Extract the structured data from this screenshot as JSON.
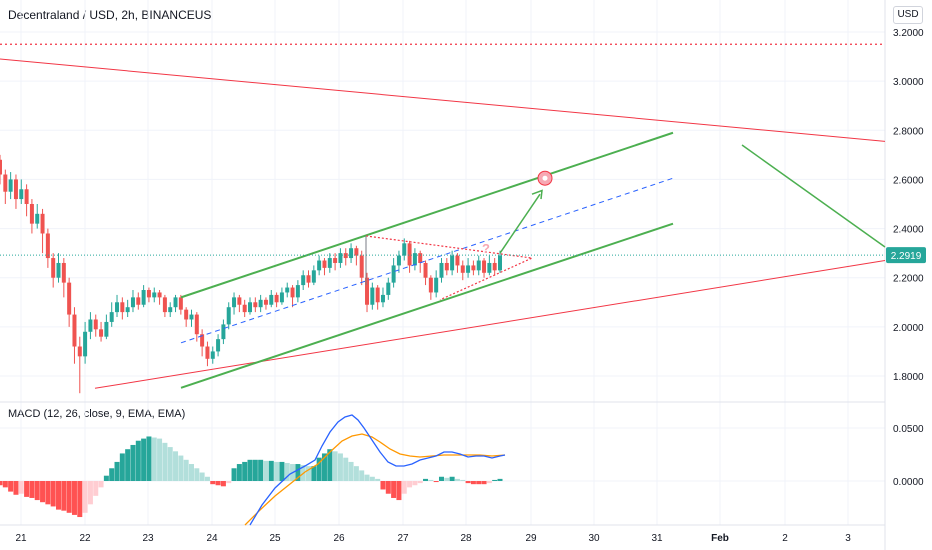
{
  "header": {
    "title": "Decentraland / USD, 2h, BINANCEUS",
    "currency_badge": "USD"
  },
  "macd": {
    "label": "MACD (12, 26, close, 9, EMA, EMA)",
    "y_ticks": [
      "0.0500",
      "0.0000"
    ]
  },
  "price": {
    "current_label": "2.2919",
    "current_value": 2.2919,
    "y_ticks": [
      "3.2000",
      "3.0000",
      "2.8000",
      "2.6000",
      "2.4000",
      "2.2000",
      "2.0000",
      "1.8000"
    ]
  },
  "chart_data": {
    "type": "candlestick",
    "symbol": "Decentraland / USD",
    "interval": "2h",
    "exchange": "BINANCEUS",
    "x_ticks": [
      "21",
      "22",
      "23",
      "24",
      "25",
      "26",
      "27",
      "28",
      "29",
      "30",
      "31",
      "Feb",
      "2",
      "3"
    ],
    "y_range": [
      1.72,
      3.26
    ],
    "last_price": 2.2919,
    "candles_approx": [
      [
        2.68,
        2.62,
        2.7,
        2.58
      ],
      [
        2.62,
        2.55,
        2.64,
        2.5
      ],
      [
        2.55,
        2.6,
        2.63,
        2.52
      ],
      [
        2.6,
        2.52,
        2.62,
        2.48
      ],
      [
        2.52,
        2.56,
        2.6,
        2.5
      ],
      [
        2.56,
        2.5,
        2.58,
        2.45
      ],
      [
        2.5,
        2.42,
        2.52,
        2.38
      ],
      [
        2.42,
        2.46,
        2.5,
        2.4
      ],
      [
        2.46,
        2.38,
        2.48,
        2.3
      ],
      [
        2.38,
        2.28,
        2.4,
        2.24
      ],
      [
        2.28,
        2.2,
        2.3,
        2.16
      ],
      [
        2.2,
        2.26,
        2.3,
        2.18
      ],
      [
        2.26,
        2.18,
        2.28,
        2.12
      ],
      [
        2.18,
        2.05,
        2.2,
        2.0
      ],
      [
        2.05,
        1.92,
        2.08,
        1.85
      ],
      [
        1.92,
        1.88,
        1.96,
        1.73
      ],
      [
        1.88,
        1.98,
        2.02,
        1.85
      ],
      [
        1.98,
        2.03,
        2.06,
        1.95
      ],
      [
        2.03,
        1.99,
        2.05,
        1.96
      ],
      [
        1.99,
        1.96,
        2.02,
        1.94
      ],
      [
        1.96,
        2.02,
        2.05,
        1.95
      ],
      [
        2.02,
        2.06,
        2.1,
        2.0
      ],
      [
        2.06,
        2.1,
        2.13,
        2.04
      ],
      [
        2.1,
        2.06,
        2.12,
        2.03
      ],
      [
        2.06,
        2.08,
        2.11,
        2.04
      ],
      [
        2.08,
        2.12,
        2.15,
        2.06
      ],
      [
        2.12,
        2.09,
        2.14,
        2.07
      ],
      [
        2.09,
        2.15,
        2.17,
        2.08
      ],
      [
        2.15,
        2.12,
        2.16,
        2.1
      ],
      [
        2.12,
        2.14,
        2.16,
        2.1
      ],
      [
        2.14,
        2.12,
        2.15,
        2.09
      ],
      [
        2.12,
        2.06,
        2.13,
        2.04
      ],
      [
        2.06,
        2.08,
        2.1,
        2.04
      ],
      [
        2.08,
        2.12,
        2.13,
        2.06
      ],
      [
        2.12,
        2.07,
        2.13,
        2.05
      ],
      [
        2.07,
        2.03,
        2.08,
        2.0
      ],
      [
        2.03,
        2.05,
        2.07,
        2.0
      ],
      [
        2.05,
        1.97,
        2.06,
        1.94
      ],
      [
        1.97,
        1.92,
        1.99,
        1.88
      ],
      [
        1.92,
        1.87,
        1.94,
        1.84
      ],
      [
        1.87,
        1.9,
        1.92,
        1.85
      ],
      [
        1.9,
        1.95,
        1.97,
        1.88
      ],
      [
        1.95,
        2.01,
        2.03,
        1.93
      ],
      [
        2.01,
        2.08,
        2.1,
        1.99
      ],
      [
        2.08,
        2.12,
        2.14,
        2.05
      ],
      [
        2.12,
        2.09,
        2.13,
        2.06
      ],
      [
        2.09,
        2.06,
        2.11,
        2.04
      ],
      [
        2.06,
        2.1,
        2.12,
        2.05
      ],
      [
        2.1,
        2.08,
        2.12,
        2.06
      ],
      [
        2.08,
        2.11,
        2.13,
        2.06
      ],
      [
        2.11,
        2.09,
        2.12,
        2.07
      ],
      [
        2.09,
        2.13,
        2.15,
        2.08
      ],
      [
        2.13,
        2.1,
        2.14,
        2.08
      ],
      [
        2.1,
        2.14,
        2.16,
        2.09
      ],
      [
        2.14,
        2.16,
        2.18,
        2.12
      ],
      [
        2.16,
        2.12,
        2.17,
        2.08
      ],
      [
        2.12,
        2.17,
        2.19,
        2.1
      ],
      [
        2.17,
        2.21,
        2.23,
        2.15
      ],
      [
        2.21,
        2.18,
        2.23,
        2.16
      ],
      [
        2.18,
        2.23,
        2.25,
        2.17
      ],
      [
        2.23,
        2.27,
        2.29,
        2.21
      ],
      [
        2.27,
        2.24,
        2.28,
        2.21
      ],
      [
        2.24,
        2.28,
        2.3,
        2.22
      ],
      [
        2.28,
        2.26,
        2.3,
        2.23
      ],
      [
        2.26,
        2.3,
        2.32,
        2.24
      ],
      [
        2.3,
        2.28,
        2.32,
        2.25
      ],
      [
        2.28,
        2.32,
        2.34,
        2.26
      ],
      [
        2.32,
        2.29,
        2.33,
        2.25
      ],
      [
        2.29,
        2.2,
        2.31,
        2.17
      ],
      [
        2.2,
        2.09,
        2.22,
        2.06
      ],
      [
        2.09,
        2.16,
        2.18,
        2.07
      ],
      [
        2.16,
        2.1,
        2.17,
        2.07
      ],
      [
        2.1,
        2.13,
        2.16,
        2.08
      ],
      [
        2.13,
        2.18,
        2.2,
        2.11
      ],
      [
        2.18,
        2.25,
        2.28,
        2.16
      ],
      [
        2.25,
        2.29,
        2.31,
        2.22
      ],
      [
        2.29,
        2.34,
        2.36,
        2.27
      ],
      [
        2.34,
        2.25,
        2.35,
        2.22
      ],
      [
        2.25,
        2.3,
        2.32,
        2.23
      ],
      [
        2.3,
        2.26,
        2.31,
        2.22
      ],
      [
        2.26,
        2.2,
        2.27,
        2.17
      ],
      [
        2.2,
        2.14,
        2.21,
        2.11
      ],
      [
        2.14,
        2.2,
        2.23,
        2.12
      ],
      [
        2.2,
        2.26,
        2.28,
        2.18
      ],
      [
        2.26,
        2.23,
        2.28,
        2.21
      ],
      [
        2.23,
        2.29,
        2.31,
        2.21
      ],
      [
        2.29,
        2.25,
        2.3,
        2.22
      ],
      [
        2.25,
        2.22,
        2.27,
        2.19
      ],
      [
        2.22,
        2.25,
        2.28,
        2.2
      ],
      [
        2.25,
        2.23,
        2.27,
        2.21
      ],
      [
        2.23,
        2.27,
        2.29,
        2.21
      ],
      [
        2.27,
        2.22,
        2.28,
        2.2
      ],
      [
        2.22,
        2.26,
        2.29,
        2.21
      ],
      [
        2.26,
        2.23,
        2.28,
        2.21
      ],
      [
        2.23,
        2.29,
        2.31,
        2.22
      ]
    ],
    "drawings": {
      "channel_upper_line": {
        "from": [
          "23.5",
          2.12
        ],
        "to": [
          "31.3",
          2.79
        ],
        "color": "#4caf50"
      },
      "channel_lower_line": {
        "from": [
          "23.5",
          1.75
        ],
        "to": [
          "31.3",
          2.42
        ],
        "color": "#4caf50"
      },
      "channel_midline_dashed": {
        "from": [
          "23.5",
          1.93
        ],
        "to": [
          "31.3",
          2.61
        ],
        "color": "#2962ff"
      },
      "resistance_line": {
        "from": [
          "20.0",
          3.09
        ],
        "to": [
          "3.6",
          2.76
        ],
        "color": "#f23645"
      },
      "support_line": {
        "from": [
          "22.2",
          1.75
        ],
        "to": [
          "3.6",
          2.27
        ],
        "color": "#f23645"
      },
      "horizontal_dotted_level": 3.15,
      "triangle_pattern": "symmetrical, 26.4 to 28.9",
      "projection_arrow_target": 2.55,
      "right_arrow": "down-right from Feb toward current level"
    },
    "macd": {
      "fast": 12,
      "slow": 26,
      "source": "close",
      "signal": 9,
      "ma_type": "EMA",
      "signal_type": "EMA",
      "y_ticks": [
        0.05,
        0.0
      ],
      "histogram_sign": "negative on 21-22 and 23.9-24.2, positive 22.5-26.5, negative 26.5-27.0, small mixed after"
    }
  }
}
